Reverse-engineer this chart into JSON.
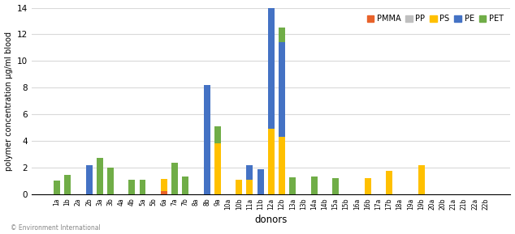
{
  "donors": [
    "1a",
    "1b",
    "2a",
    "2b",
    "3a",
    "3b",
    "4a",
    "4b",
    "5a",
    "5b",
    "6a",
    "7a",
    "7b",
    "8a",
    "8b",
    "9a",
    "10a",
    "10b",
    "11a",
    "11b",
    "12a",
    "12b",
    "13a",
    "13b",
    "14a",
    "14b",
    "15a",
    "15b",
    "16a",
    "16b",
    "17a",
    "17b",
    "18a",
    "19a",
    "19b",
    "20a",
    "20b",
    "21a",
    "21b",
    "22a",
    "22b"
  ],
  "PMMA": [
    0,
    0,
    0,
    0,
    0,
    0,
    0,
    0,
    0,
    0,
    0.25,
    0,
    0,
    0,
    0,
    0,
    0,
    0,
    0,
    0,
    0,
    0,
    0,
    0,
    0,
    0,
    0,
    0,
    0,
    0,
    0,
    0,
    0,
    0,
    0,
    0,
    0,
    0,
    0,
    0,
    0
  ],
  "PP": [
    0,
    0,
    0,
    0,
    0,
    0,
    0,
    0,
    0,
    0,
    0,
    0,
    0,
    0,
    0,
    0,
    0,
    0,
    0,
    0,
    0,
    0,
    0,
    0,
    0,
    0,
    0,
    0,
    0,
    0,
    0,
    0,
    0,
    0,
    0,
    0,
    0,
    0,
    0,
    0,
    0
  ],
  "PS": [
    0,
    0,
    0,
    0,
    0,
    0,
    0,
    0,
    0,
    0,
    0.9,
    0,
    0,
    0,
    0,
    3.8,
    0,
    1.1,
    1.1,
    0,
    4.9,
    4.3,
    0,
    0,
    0,
    0,
    0,
    0,
    0,
    1.2,
    0,
    1.75,
    0,
    0,
    2.2,
    0,
    0,
    0,
    0,
    0,
    0
  ],
  "PE": [
    0,
    0,
    0,
    2.2,
    0,
    0,
    0,
    0,
    0,
    0,
    0,
    0,
    0,
    0,
    8.2,
    0,
    0,
    0,
    1.1,
    1.9,
    11.0,
    7.1,
    0,
    0,
    0,
    0,
    0,
    0,
    0,
    0,
    0,
    0,
    0,
    0,
    0,
    0,
    0,
    0,
    0,
    0,
    0
  ],
  "PET": [
    1.0,
    1.45,
    0,
    0,
    2.7,
    2.0,
    0,
    1.05,
    1.1,
    0,
    0,
    2.35,
    1.35,
    0,
    0,
    1.3,
    0,
    0,
    0,
    0,
    0,
    1.1,
    1.25,
    0,
    1.3,
    0,
    1.2,
    0,
    0,
    0,
    0,
    0,
    0,
    0,
    0,
    0,
    0,
    0,
    0,
    0,
    0
  ],
  "colors": {
    "PMMA": "#e8622a",
    "PP": "#bfbfbf",
    "PS": "#ffc000",
    "PE": "#4472c4",
    "PET": "#70ad47"
  },
  "ylim": [
    0,
    14
  ],
  "yticks": [
    0,
    2,
    4,
    6,
    8,
    10,
    12,
    14
  ],
  "xlabel": "donors",
  "ylabel": "polymer concentration μg/ml blood",
  "legend_labels": [
    "PMMA",
    "PP",
    "PS",
    "PE",
    "PET"
  ],
  "background_color": "#ffffff",
  "grid_color": "#d9d9d9"
}
